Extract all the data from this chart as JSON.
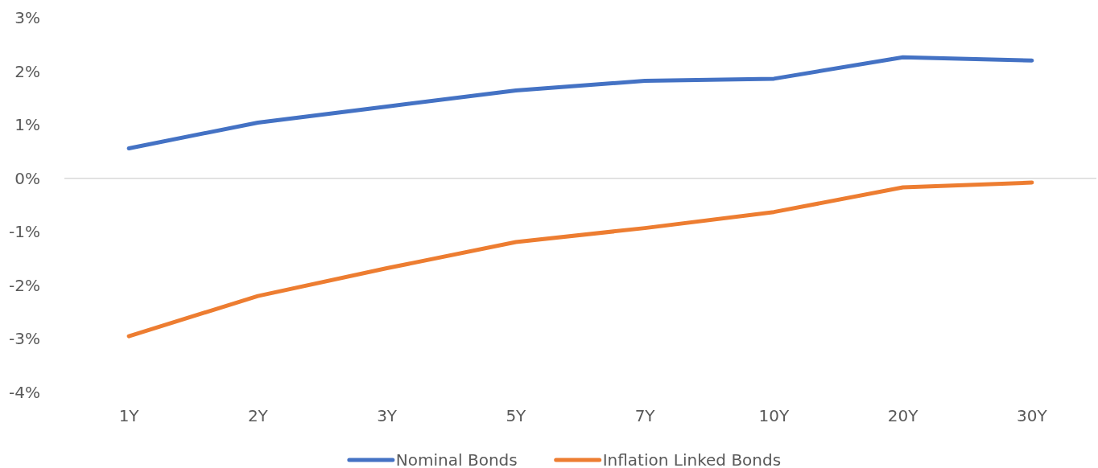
{
  "chart_data": {
    "type": "line",
    "categories": [
      "1Y",
      "2Y",
      "3Y",
      "5Y",
      "7Y",
      "10Y",
      "20Y",
      "30Y"
    ],
    "series": [
      {
        "name": "Nominal Bonds",
        "color": "#4472c4",
        "values": [
          0.56,
          1.04,
          1.34,
          1.64,
          1.82,
          1.86,
          2.26,
          2.2
        ]
      },
      {
        "name": "Inflation Linked Bonds",
        "color": "#ed7d31",
        "values": [
          -2.95,
          -2.2,
          -1.68,
          -1.19,
          -0.93,
          -0.63,
          -0.17,
          -0.08
        ]
      }
    ],
    "ylim": [
      -4,
      3
    ],
    "yticks": [
      {
        "value": -4,
        "label": "-4%"
      },
      {
        "value": -3,
        "label": "-3%"
      },
      {
        "value": -2,
        "label": "-2%"
      },
      {
        "value": -1,
        "label": "-1%"
      },
      {
        "value": 0,
        "label": "0%"
      },
      {
        "value": 1,
        "label": "1%"
      },
      {
        "value": 2,
        "label": "2%"
      },
      {
        "value": 3,
        "label": "3%"
      }
    ],
    "ref_lines": [
      {
        "axis": "y",
        "value": 0,
        "color": "#d9d9d9"
      }
    ],
    "grid": false,
    "legend": "bottom",
    "marker": "none",
    "line_style": "solid"
  }
}
